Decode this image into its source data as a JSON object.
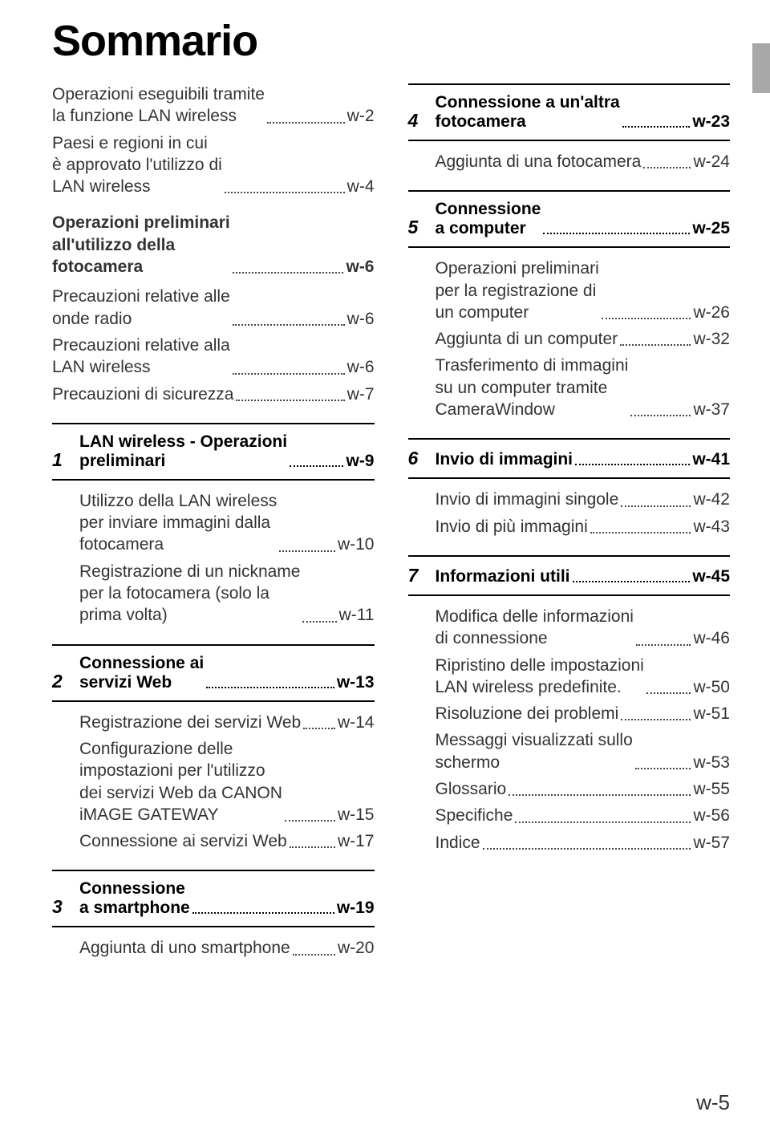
{
  "title": "Sommario",
  "footer": "w-5",
  "left": {
    "intro": [
      {
        "label": "Operazioni eseguibili tramite<br>la funzione LAN wireless",
        "page": "w-2"
      },
      {
        "label": "Paesi e regioni in cui<br>è approvato l'utilizzo di<br>LAN wireless",
        "page": "w-4"
      }
    ],
    "prelimHead": {
      "label": "Operazioni preliminari<br>all'utilizzo della<br>fotocamera",
      "page": "w-6"
    },
    "prelimItems": [
      {
        "label": "Precauzioni relative alle<br>onde radio",
        "page": "w-6"
      },
      {
        "label": "Precauzioni relative alla<br>LAN wireless",
        "page": "w-6"
      },
      {
        "label": "Precauzioni di sicurezza",
        "page": "w-7"
      }
    ],
    "sec1": {
      "num": "1",
      "title": "LAN wireless - Operazioni<br>preliminari",
      "page": "w-9",
      "items": [
        {
          "label": "Utilizzo della LAN wireless<br>per inviare immagini dalla<br>fotocamera",
          "page": "w-10"
        },
        {
          "label": "Registrazione di un nickname<br>per la fotocamera (solo la<br>prima volta)",
          "page": " w-11"
        }
      ]
    },
    "sec2": {
      "num": "2",
      "title": "Connessione ai<br>servizi Web",
      "page": "w-13",
      "items": [
        {
          "label": "Registrazione dei servizi Web",
          "page": "w-14"
        },
        {
          "label": "Configurazione delle<br>impostazioni per l'utilizzo<br>dei servizi Web da CANON<br>iMAGE GATEWAY",
          "page": "w-15"
        },
        {
          "label": "Connessione ai servizi Web",
          "page": "w-17"
        }
      ]
    },
    "sec3": {
      "num": "3",
      "title": "Connessione<br>a smartphone",
      "page": "w-19",
      "items": [
        {
          "label": "Aggiunta di uno smartphone",
          "page": "w-20"
        }
      ]
    }
  },
  "right": {
    "sec4": {
      "num": "4",
      "title": "Connessione a un'altra<br>fotocamera",
      "page": "w-23",
      "items": [
        {
          "label": "Aggiunta di una fotocamera",
          "page": "w-24"
        }
      ]
    },
    "sec5": {
      "num": "5",
      "title": "Connessione<br>a computer",
      "page": "w-25",
      "items": [
        {
          "label": "Operazioni preliminari<br>per la registrazione di<br>un computer",
          "page": "w-26"
        },
        {
          "label": "Aggiunta di un computer",
          "page": "w-32"
        },
        {
          "label": "Trasferimento di immagini<br>su un computer tramite<br>CameraWindow",
          "page": "w-37"
        }
      ]
    },
    "sec6": {
      "num": "6",
      "title": "Invio di immagini",
      "page": "w-41",
      "items": [
        {
          "label": "Invio di immagini singole",
          "page": "w-42"
        },
        {
          "label": "Invio di più immagini",
          "page": "w-43"
        }
      ]
    },
    "sec7": {
      "num": "7",
      "title": "Informazioni utili",
      "page": "w-45",
      "items": [
        {
          "label": "Modifica delle informazioni<br>di connessione",
          "page": "w-46"
        },
        {
          "label": "Ripristino delle impostazioni<br>LAN wireless predefinite.",
          "page": "w-50"
        },
        {
          "label": "Risoluzione dei problemi",
          "page": "w-51"
        },
        {
          "label": "Messaggi visualizzati sullo<br>schermo",
          "page": "w-53"
        },
        {
          "label": "Glossario",
          "page": "w-55"
        },
        {
          "label": "Specifiche",
          "page": "w-56"
        },
        {
          "label": "Indice",
          "page": "w-57"
        }
      ]
    }
  }
}
